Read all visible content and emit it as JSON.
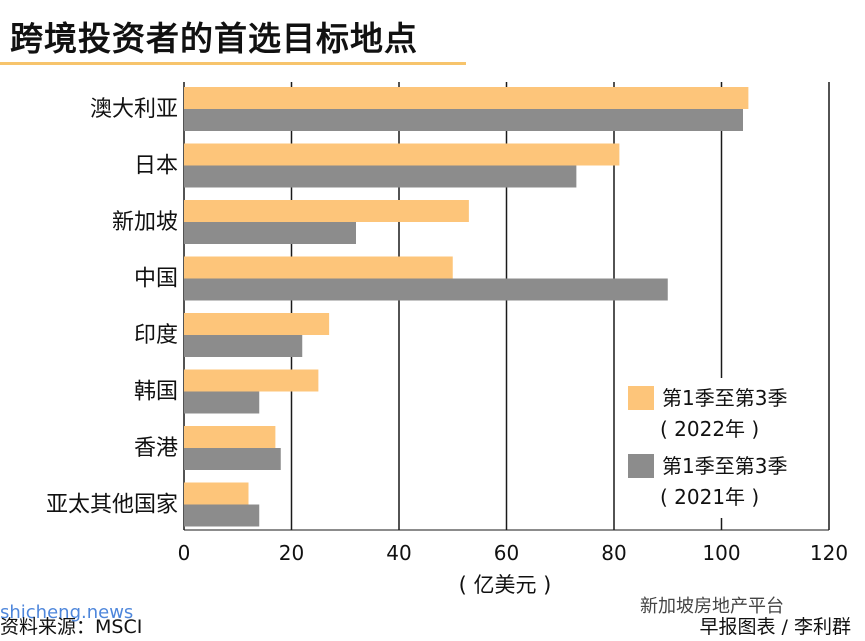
{
  "title": "跨境投资者的首选目标地点",
  "source": "资料来源：MSCI",
  "credit": "早报图表 / 李利群",
  "watermark_left": "shicheng.news",
  "watermark_right": "新加坡房地产平台",
  "colors": {
    "series_2022": "#fdc57a",
    "series_2021": "#8c8c8c",
    "grid": "#1a1a1a",
    "accent_rule": "#f7c46c"
  },
  "chart_data": {
    "type": "bar",
    "orientation": "horizontal",
    "categories": [
      "澳大利亚",
      "日本",
      "新加坡",
      "中国",
      "印度",
      "韩国",
      "香港",
      "亚太其他国家"
    ],
    "series": [
      {
        "name": "第1季至第3季（2022年）",
        "values": [
          105,
          81,
          53,
          50,
          27,
          25,
          17,
          12
        ]
      },
      {
        "name": "第1季至第3季（2021年）",
        "values": [
          104,
          73,
          32,
          90,
          22,
          14,
          18,
          14
        ]
      }
    ],
    "xlabel": "( 亿美元 )",
    "xlim": [
      0,
      120
    ],
    "xticks": [
      "0",
      "20",
      "40",
      "60",
      "80",
      "100",
      "120"
    ],
    "grid": "vertical",
    "legend": {
      "placement": "bottom-right",
      "items": [
        {
          "line1": "第1季至第3季",
          "line2": "( 2022年 )"
        },
        {
          "line1": "第1季至第3季",
          "line2": "( 2021年 )"
        }
      ]
    }
  }
}
